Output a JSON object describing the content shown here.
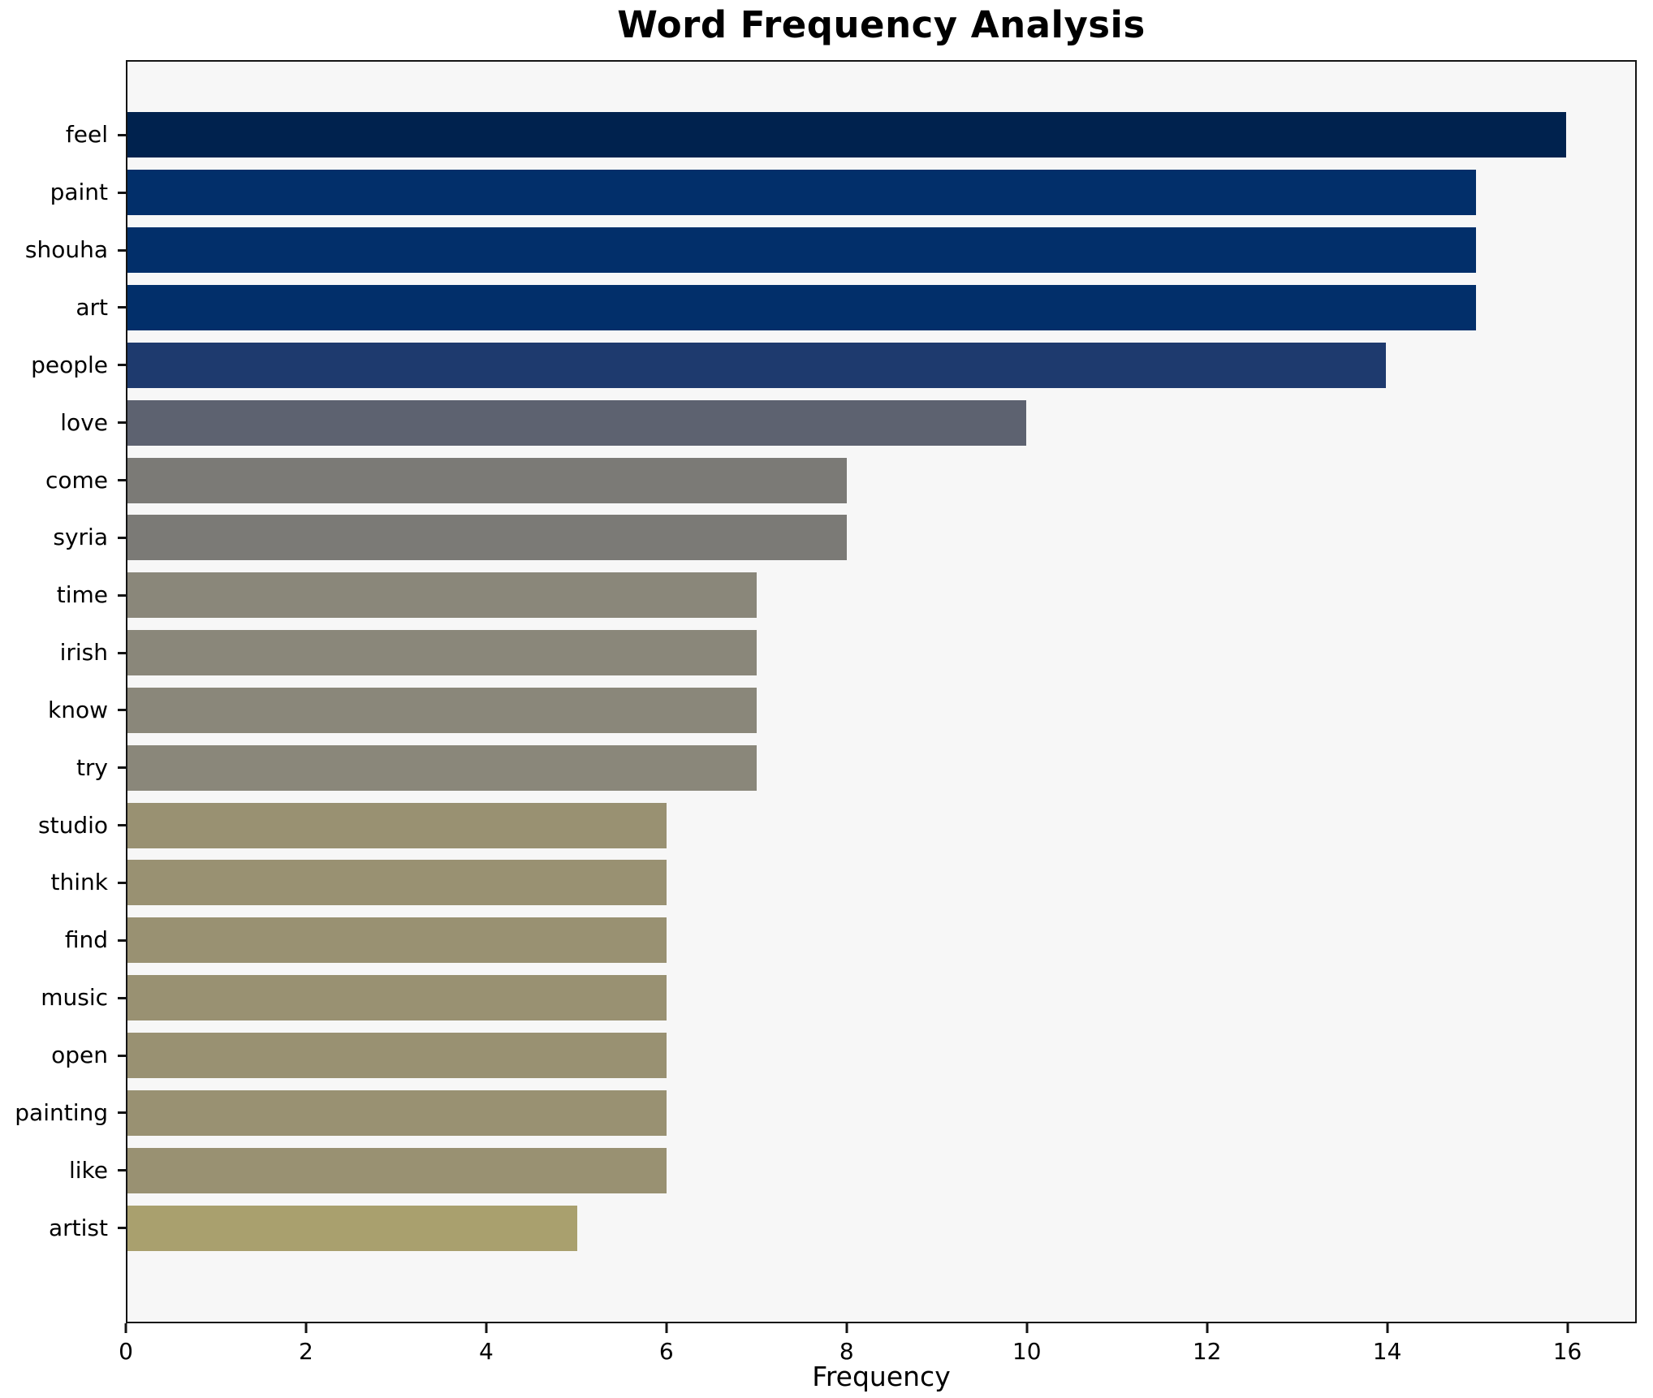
{
  "chart_data": {
    "type": "bar",
    "orientation": "horizontal",
    "title": "Word Frequency Analysis",
    "xlabel": "Frequency",
    "ylabel": "",
    "categories": [
      "feel",
      "paint",
      "shouha",
      "art",
      "people",
      "love",
      "come",
      "syria",
      "time",
      "irish",
      "know",
      "try",
      "studio",
      "think",
      "find",
      "music",
      "open",
      "painting",
      "like",
      "artist"
    ],
    "values": [
      16,
      15,
      15,
      15,
      14,
      10,
      8,
      8,
      7,
      7,
      7,
      7,
      6,
      6,
      6,
      6,
      6,
      6,
      6,
      5
    ],
    "bar_colors": [
      "#00224e",
      "#022f6a",
      "#022f6a",
      "#022f6a",
      "#1e3a6e",
      "#5d6270",
      "#7b7a76",
      "#7b7a76",
      "#8a877a",
      "#8a877a",
      "#8a877a",
      "#8a877a",
      "#999172",
      "#999172",
      "#999172",
      "#999172",
      "#999172",
      "#999172",
      "#999172",
      "#a9a06e"
    ],
    "xticks": [
      0,
      2,
      4,
      6,
      8,
      10,
      12,
      14,
      16
    ],
    "xlim": [
      0,
      16.77
    ],
    "grid": false,
    "legend": false,
    "plot_background": "#f7f7f7",
    "figure_background": "#ffffff"
  }
}
